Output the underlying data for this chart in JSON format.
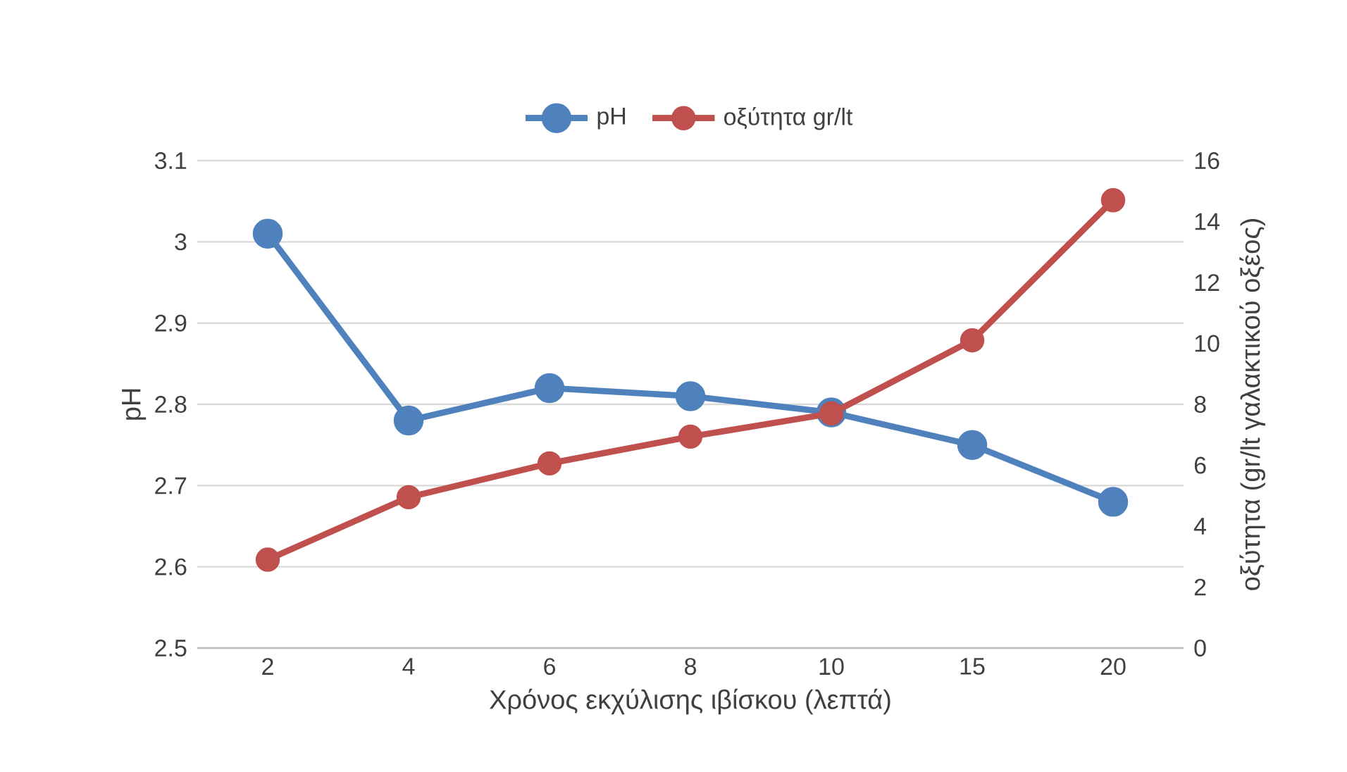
{
  "chart_data": {
    "type": "line",
    "xlabel": "Χρόνος εκχύλισης ιβίσκου (λεπτά)",
    "ylabel": "pH",
    "y2label": "οξύτητα (gr/lt γαλακτικού οξέος)",
    "categories": [
      "2",
      "4",
      "6",
      "8",
      "10",
      "15",
      "20"
    ],
    "series": [
      {
        "name": "pH",
        "color": "#4f81bd",
        "values": [
          3.01,
          2.78,
          2.82,
          2.81,
          2.79,
          2.75,
          2.68
        ]
      },
      {
        "name": "οξύτητα gr/lt",
        "color": "#c0504d",
        "axis": "y2",
        "values": [
          2.9,
          4.95,
          6.06,
          6.94,
          7.7,
          10.1,
          14.7
        ]
      }
    ],
    "ylim": [
      2.5,
      3.1
    ],
    "yticks": [
      2.5,
      2.6,
      2.7,
      2.8,
      2.9,
      3,
      3.1
    ],
    "y2lim": [
      0,
      16
    ],
    "y2ticks": [
      0,
      2,
      4,
      6,
      8,
      10,
      12,
      14,
      16
    ],
    "grid": "y",
    "legend": "top",
    "marker": "circle",
    "line_style": "solid"
  }
}
